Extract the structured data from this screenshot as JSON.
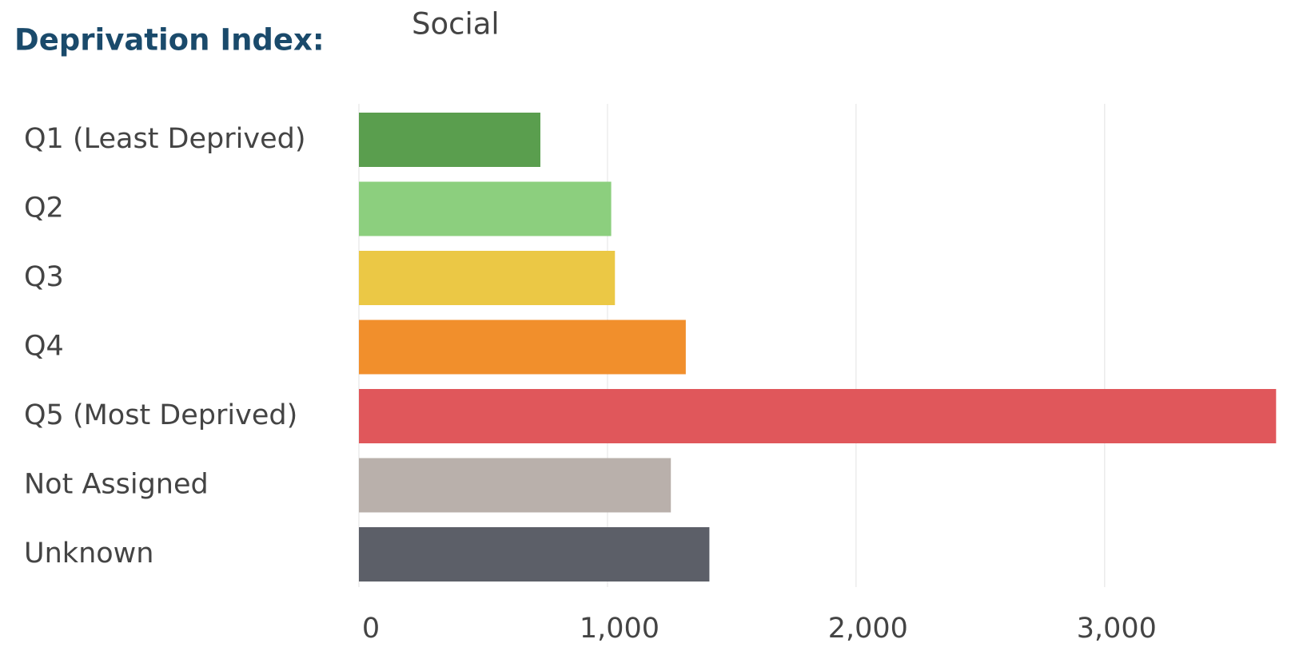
{
  "chart_data": {
    "type": "hbar",
    "title": "Deprivation Index:",
    "subtitle": "Social",
    "categories": [
      "Q1 (Least Deprived)",
      "Q2",
      "Q3",
      "Q4",
      "Q5 (Most Deprived)",
      "Not Assigned",
      "Unknown"
    ],
    "values": [
      730,
      1015,
      1030,
      1315,
      3690,
      1255,
      1410
    ],
    "colors": [
      "#5a9e4e",
      "#8ccf7e",
      "#ebc845",
      "#f18f2c",
      "#e0575b",
      "#b9b0ab",
      "#5c5f68"
    ],
    "xlim": [
      0,
      3750
    ],
    "xticks": [
      0,
      {
        "value": 1000,
        "label": "1,000"
      },
      {
        "value": 2000,
        "label": "2,000"
      },
      {
        "value": 3000,
        "label": "3,000"
      }
    ],
    "grid": true
  }
}
